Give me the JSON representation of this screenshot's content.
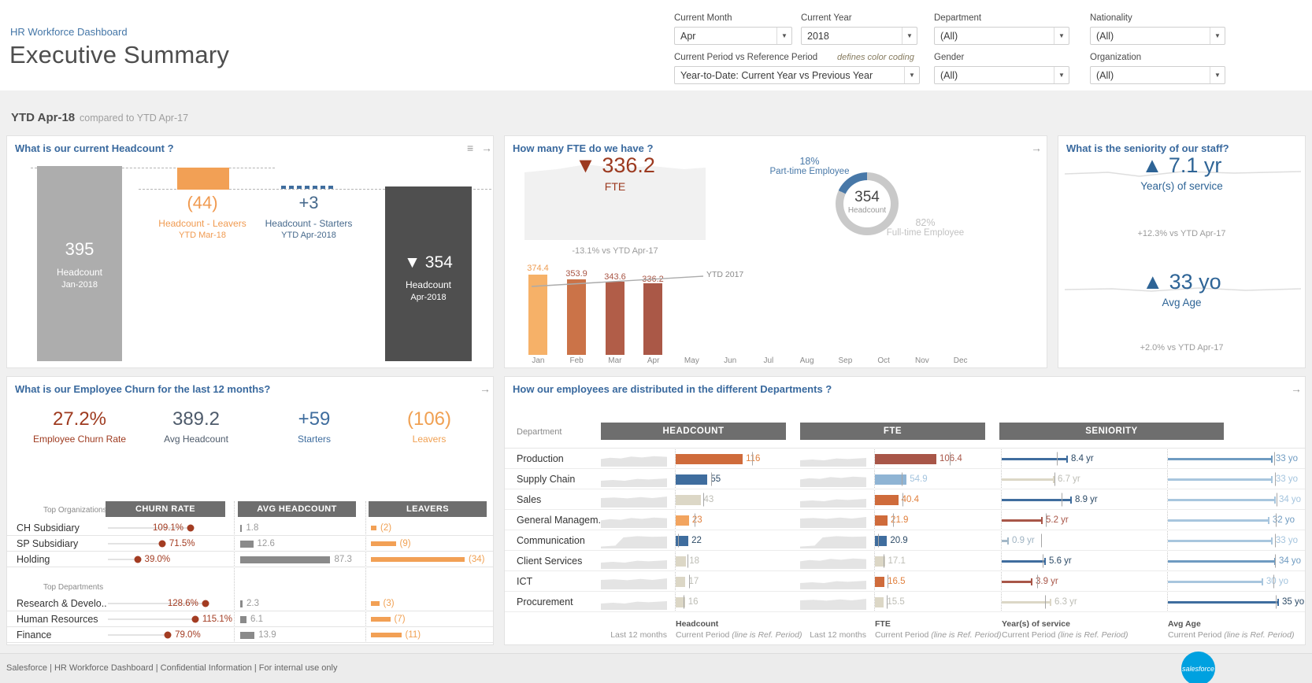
{
  "header": {
    "breadcrumb": "HR Workforce Dashboard",
    "title": "Executive Summary"
  },
  "filters": {
    "current_month": {
      "label": "Current Month",
      "value": "Apr"
    },
    "current_year": {
      "label": "Current Year",
      "value": "2018"
    },
    "department": {
      "label": "Department",
      "value": "(All)"
    },
    "nationality": {
      "label": "Nationality",
      "value": "(All)"
    },
    "period_compare": {
      "label": "Current Period vs Reference Period",
      "note": "defines color coding",
      "value": "Year-to-Date: Current Year vs Previous Year"
    },
    "gender": {
      "label": "Gender",
      "value": "(All)"
    },
    "organization": {
      "label": "Organization",
      "value": "(All)"
    }
  },
  "banner": {
    "current": "YTD Apr-18",
    "comparison": "compared to YTD Apr-17"
  },
  "headcount_panel": {
    "title": "What is our current Headcount ?",
    "start_value": 395,
    "start_label1": "Headcount",
    "start_label2": "Jan-2018",
    "leavers_display": "(44)",
    "leavers_value": 44,
    "leavers_label1": "Headcount - Leavers",
    "leavers_label2": "YTD Mar-18",
    "starters_display": "+3",
    "starters_value": 3,
    "starters_label1": "Headcount - Starters",
    "starters_label2": "YTD Apr-2018",
    "end_display": "▼ 354",
    "end_value": 354,
    "end_label1": "Headcount",
    "end_label2": "Apr-2018"
  },
  "fte_panel": {
    "title": "How many FTE do we have ?",
    "kpi_value": "▼ 336.2",
    "kpi_label": "FTE",
    "kpi_delta": "-13.1% vs YTD Apr-17",
    "donut": {
      "part_pct": "18%",
      "part_label": "Part-time Employee",
      "center_value": "354",
      "center_label": "Headcount",
      "full_pct": "82%",
      "full_label": "Full-time Employee"
    },
    "monthly": {
      "months": [
        "Jan",
        "Feb",
        "Mar",
        "Apr",
        "May",
        "Jun",
        "Jul",
        "Aug",
        "Sep",
        "Oct",
        "Nov",
        "Dec"
      ],
      "values": [
        374.4,
        353.9,
        343.6,
        336.2
      ],
      "ref_label": "YTD 2017"
    }
  },
  "seniority_panel": {
    "title": "What is the seniority of our staff?",
    "service_value": "▲ 7.1 yr",
    "service_label": "Year(s) of service",
    "service_delta": "+12.3% vs YTD Apr-17",
    "age_value": "▲ 33 yo",
    "age_label": "Avg Age",
    "age_delta": "+2.0% vs YTD Apr-17"
  },
  "churn_panel": {
    "title": "What is our Employee Churn for the last 12 months?",
    "kpis": [
      {
        "value": "27.2%",
        "label": "Employee Churn Rate"
      },
      {
        "value": "389.2",
        "label": "Avg Headcount"
      },
      {
        "value": "+59",
        "label": "Starters"
      },
      {
        "value": "(106)",
        "label": "Leavers"
      }
    ],
    "org_section": "Top Organizations",
    "dept_section": "Top Departments",
    "columns": [
      "CHURN RATE",
      "AVG HEADCOUNT",
      "LEAVERS"
    ],
    "organizations": [
      {
        "name": "CH Subsidiary",
        "churn": "109.1%",
        "avg_headcount": "1.8",
        "leavers": "(2)",
        "leavers_value": 2
      },
      {
        "name": "SP Subsidiary",
        "churn": "71.5%",
        "avg_headcount": "12.6",
        "leavers": "(9)",
        "leavers_value": 9
      },
      {
        "name": "Holding",
        "churn": "39.0%",
        "avg_headcount": "87.3",
        "leavers": "(34)",
        "leavers_value": 34
      }
    ],
    "departments": [
      {
        "name": "Research & Develo..",
        "churn": "128.6%",
        "avg_headcount": "2.3",
        "leavers": "(3)",
        "leavers_value": 3
      },
      {
        "name": "Human Resources",
        "churn": "115.1%",
        "avg_headcount": "6.1",
        "leavers": "(7)",
        "leavers_value": 7
      },
      {
        "name": "Finance",
        "churn": "79.0%",
        "avg_headcount": "13.9",
        "leavers": "(11)",
        "leavers_value": 11
      }
    ]
  },
  "dept_panel": {
    "title": "How our employees are distributed in the different Departments ?",
    "dept_col": "Department",
    "group_headers": [
      "HEADCOUNT",
      "FTE",
      "SENIORITY"
    ],
    "rows": [
      {
        "name": "Production",
        "headcount": 116,
        "headcount_ref": 132,
        "fte": "106.4",
        "fte_ref": 130,
        "service": "8.4 yr",
        "service_ref": 7.0,
        "age": "33 yo",
        "age_ref": 33.5
      },
      {
        "name": "Supply Chain",
        "headcount": 55,
        "headcount_ref": 61,
        "fte": "54.9",
        "fte_ref": 47,
        "service": "6.7 yr",
        "service_ref": 6.7,
        "age": "33 yo",
        "age_ref": 33.8
      },
      {
        "name": "Sales",
        "headcount": 43,
        "headcount_ref": 48,
        "fte": "40.4",
        "fte_ref": 48,
        "service": "8.9 yr",
        "service_ref": 7.6,
        "age": "34 yo",
        "age_ref": 34.3
      },
      {
        "name": "General Managem..",
        "headcount": 23,
        "headcount_ref": 33,
        "fte": "21.9",
        "fte_ref": 32,
        "service": "5.2 yr",
        "service_ref": 5.6,
        "age": "32 yo",
        "age_ref": 33.9
      },
      {
        "name": "Communication",
        "headcount": 22,
        "headcount_ref": 4,
        "fte": "20.9",
        "fte_ref": 5,
        "service": "0.9 yr",
        "service_ref": 5.0,
        "age": "33 yo",
        "age_ref": 33.7
      },
      {
        "name": "Client Services",
        "headcount": 18,
        "headcount_ref": 20,
        "fte": "17.1",
        "fte_ref": 15,
        "service": "5.6 yr",
        "service_ref": 5.2,
        "age": "34 yo",
        "age_ref": 33.8
      },
      {
        "name": "ICT",
        "headcount": 17,
        "headcount_ref": 23,
        "fte": "16.5",
        "fte_ref": 22,
        "service": "3.9 yr",
        "service_ref": 4.5,
        "age": "30 yo",
        "age_ref": 33.3
      },
      {
        "name": "Procurement",
        "headcount": 16,
        "headcount_ref": 14,
        "fte": "15.5",
        "fte_ref": 21,
        "service": "6.3 yr",
        "service_ref": 5.5,
        "age": "35 yo",
        "age_ref": 34.0
      }
    ],
    "captions": {
      "last12": "Last 12 months",
      "headcount_title": "Headcount",
      "fte_title": "FTE",
      "service_title": "Year(s) of service",
      "age_title": "Avg Age",
      "current_period": "Current Period",
      "ref_note": "(line is Ref. Period)"
    }
  },
  "footer": {
    "text": "Salesforce | HR Workforce Dashboard | Confidential Information | For internal use only",
    "logo_text": "salesforce"
  },
  "colors": {
    "accent_blue": "#39699e",
    "orange": "#f2a055",
    "dark_red": "#a33c22",
    "terracotta": "#a85648",
    "dark_blue": "#3f6d9e",
    "light_blue": "#9dc0dc",
    "gray_bar": "#8a8a8a",
    "beige": "#dcd7c6",
    "salesforce_blue": "#00a1e0"
  }
}
